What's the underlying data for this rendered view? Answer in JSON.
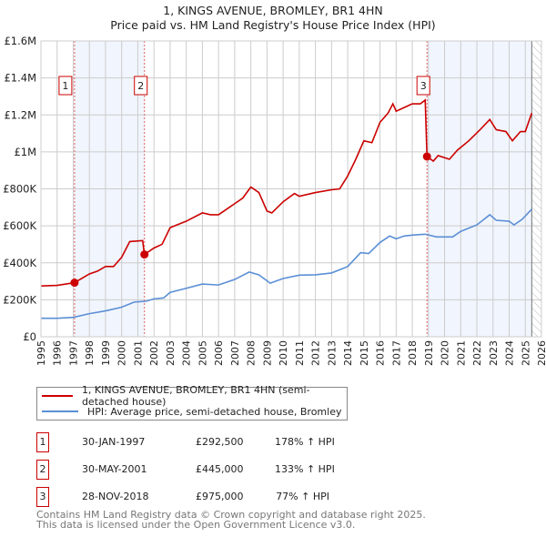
{
  "chart_data": {
    "type": "line",
    "title": "1, KINGS AVENUE, BROMLEY, BR1 4HN",
    "subtitle": "Price paid vs. HM Land Registry's House Price Index (HPI)",
    "xlim": [
      1995,
      2026
    ],
    "ylim": [
      0,
      1600000
    ],
    "x_ticks": [
      "1995",
      "1996",
      "1997",
      "1998",
      "1999",
      "2000",
      "2001",
      "2002",
      "2003",
      "2004",
      "2005",
      "2006",
      "2007",
      "2008",
      "2009",
      "2010",
      "2011",
      "2012",
      "2013",
      "2014",
      "2015",
      "2016",
      "2017",
      "2018",
      "2019",
      "2020",
      "2021",
      "2022",
      "2023",
      "2024",
      "2025",
      "2026"
    ],
    "y_ticks": [
      {
        "v": 0,
        "label": "£0"
      },
      {
        "v": 200000,
        "label": "£200K"
      },
      {
        "v": 400000,
        "label": "£400K"
      },
      {
        "v": 600000,
        "label": "£600K"
      },
      {
        "v": 800000,
        "label": "£800K"
      },
      {
        "v": 1000000,
        "label": "£1M"
      },
      {
        "v": 1200000,
        "label": "£1.2M"
      },
      {
        "v": 1400000,
        "label": "£1.4M"
      },
      {
        "v": 1600000,
        "label": "£1.6M"
      }
    ],
    "grid": true,
    "series": [
      {
        "name": "1, KINGS AVENUE, BROMLEY, BR1 4HN (semi-detached house)",
        "color": "#cc0000",
        "x": [
          1995,
          1996,
          1997.08,
          1998,
          1998.5,
          1999,
          1999.5,
          2000,
          2000.5,
          2001.3,
          2001.41,
          2002,
          2002.5,
          2003,
          2004,
          2005,
          2005.5,
          2006,
          2007,
          2007.5,
          2008,
          2008.5,
          2009,
          2009.3,
          2010,
          2010.7,
          2011,
          2012,
          2013,
          2013.5,
          2014,
          2014.5,
          2015,
          2015.5,
          2016,
          2016.5,
          2016.8,
          2017,
          2017.5,
          2018,
          2018.5,
          2018.8,
          2018.91,
          2019.3,
          2019.6,
          2020.3,
          2020.8,
          2021.5,
          2022.2,
          2022.8,
          2023.2,
          2023.8,
          2024.2,
          2024.7,
          2025,
          2025.4
        ],
        "y": [
          275000,
          278000,
          292500,
          340000,
          355000,
          380000,
          380000,
          430000,
          515000,
          520000,
          445000,
          480000,
          500000,
          590000,
          625000,
          670000,
          660000,
          660000,
          720000,
          750000,
          810000,
          780000,
          680000,
          670000,
          730000,
          775000,
          760000,
          780000,
          795000,
          800000,
          870000,
          960000,
          1060000,
          1050000,
          1160000,
          1210000,
          1260000,
          1220000,
          1240000,
          1260000,
          1260000,
          1280000,
          975000,
          950000,
          980000,
          960000,
          1010000,
          1060000,
          1120000,
          1175000,
          1120000,
          1110000,
          1060000,
          1110000,
          1110000,
          1210000
        ]
      },
      {
        "name": "HPI: Average price, semi-detached house, Bromley",
        "color": "#5b8fd6",
        "x": [
          1995,
          1996,
          1997,
          1998,
          1999,
          2000,
          2000.8,
          2001.5,
          2002,
          2002.6,
          2003,
          2004,
          2005,
          2006,
          2007,
          2007.9,
          2008.5,
          2009.2,
          2010,
          2011,
          2012,
          2013,
          2014,
          2014.8,
          2015.3,
          2016,
          2016.6,
          2017,
          2017.5,
          2018,
          2018.8,
          2019.5,
          2020.5,
          2021,
          2022,
          2022.8,
          2023.2,
          2024,
          2024.3,
          2024.8,
          2025.4
        ],
        "y": [
          100000,
          100000,
          105000,
          125000,
          140000,
          160000,
          188000,
          192000,
          205000,
          210000,
          240000,
          262000,
          285000,
          280000,
          310000,
          350000,
          335000,
          290000,
          315000,
          333000,
          335000,
          345000,
          380000,
          455000,
          450000,
          510000,
          545000,
          530000,
          545000,
          550000,
          555000,
          540000,
          540000,
          570000,
          605000,
          660000,
          630000,
          625000,
          605000,
          635000,
          690000
        ]
      }
    ],
    "sales": [
      {
        "label": "1",
        "x": 1997.08,
        "y": 292500,
        "date": "30-JAN-1997",
        "price": "£292,500",
        "hpi": "178% ↑ HPI"
      },
      {
        "label": "2",
        "x": 2001.41,
        "y": 445000,
        "date": "30-MAY-2001",
        "price": "£445,000",
        "hpi": "133% ↑ HPI"
      },
      {
        "label": "3",
        "x": 2018.91,
        "y": 975000,
        "date": "28-NOV-2018",
        "price": "£975,000",
        "hpi": "77% ↑ HPI"
      }
    ],
    "shaded": [
      [
        1997.08,
        2001.41
      ],
      [
        2018.91,
        2025.4
      ]
    ],
    "hatched_from": 2025.4,
    "legend": "bottom"
  },
  "footer": {
    "line1": "Contains HM Land Registry data © Crown copyright and database right 2025.",
    "line2": "This data is licensed under the Open Government Licence v3.0."
  }
}
